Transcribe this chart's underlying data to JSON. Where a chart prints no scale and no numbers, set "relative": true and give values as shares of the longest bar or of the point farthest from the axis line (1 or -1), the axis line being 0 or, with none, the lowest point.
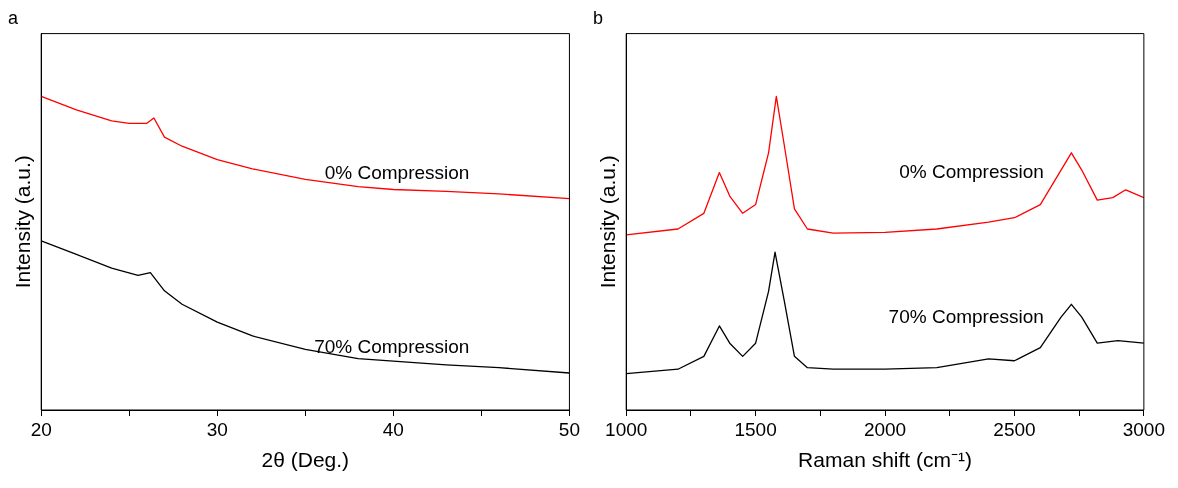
{
  "chart_data": [
    {
      "type": "line",
      "title": "a",
      "xlabel": "2θ (Deg.)",
      "ylabel": "Intensity (a.u.)",
      "relative": true,
      "xlim": [
        20,
        50
      ],
      "xticks": [
        20,
        {
          "value": 25,
          "label": null
        },
        30,
        {
          "value": 35,
          "label": null
        },
        40,
        {
          "value": 45,
          "label": null
        },
        50
      ],
      "grid": false,
      "legend": false,
      "marker": "none",
      "series": [
        {
          "name": "0% Compression",
          "color": "#ff0000",
          "x": [
            20,
            22,
            24,
            25,
            26,
            26.4,
            27,
            28,
            30,
            32,
            35,
            38,
            40,
            43,
            46,
            50
          ],
          "values": [
            1.0,
            0.957,
            0.922,
            0.914,
            0.914,
            0.931,
            0.87,
            0.841,
            0.798,
            0.769,
            0.735,
            0.712,
            0.703,
            0.697,
            0.689,
            0.674
          ]
        },
        {
          "name": "70% Compression",
          "color": "#000000",
          "x": [
            20,
            22,
            24,
            25.5,
            26.2,
            27,
            28,
            30,
            32,
            35,
            38,
            40,
            43,
            46,
            50
          ],
          "values": [
            0.539,
            0.496,
            0.452,
            0.429,
            0.438,
            0.38,
            0.337,
            0.28,
            0.236,
            0.193,
            0.164,
            0.156,
            0.144,
            0.135,
            0.118
          ]
        }
      ]
    },
    {
      "type": "line",
      "title": "b",
      "xlabel": "Raman shift (cm⁻¹)",
      "ylabel": "Intensity (a.u.)",
      "relative": true,
      "xlim": [
        1000,
        3000
      ],
      "xticks": [
        1000,
        {
          "value": 1250,
          "label": null
        },
        1500,
        {
          "value": 1750,
          "label": null
        },
        2000,
        {
          "value": 2250,
          "label": null
        },
        2500,
        {
          "value": 2750,
          "label": null
        },
        3000
      ],
      "grid": false,
      "legend": false,
      "marker": "none",
      "series": [
        {
          "name": "0% Compression",
          "color": "#ff0000",
          "x": [
            1000,
            1200,
            1300,
            1360,
            1400,
            1450,
            1500,
            1550,
            1580,
            1610,
            1650,
            1700,
            1800,
            2000,
            2200,
            2400,
            2500,
            2600,
            2680,
            2720,
            2760,
            2820,
            2880,
            2930,
            3000
          ],
          "values": [
            0.558,
            0.577,
            0.627,
            0.757,
            0.682,
            0.627,
            0.655,
            0.82,
            1.0,
            0.848,
            0.641,
            0.577,
            0.564,
            0.566,
            0.577,
            0.599,
            0.613,
            0.655,
            0.765,
            0.82,
            0.765,
            0.669,
            0.677,
            0.702,
            0.677
          ]
        },
        {
          "name": "70% Compression",
          "color": "#000000",
          "x": [
            1000,
            1200,
            1300,
            1360,
            1400,
            1450,
            1500,
            1550,
            1575,
            1610,
            1650,
            1700,
            1800,
            2000,
            2200,
            2400,
            2500,
            2600,
            2680,
            2720,
            2760,
            2820,
            2900,
            3000
          ],
          "values": [
            0.116,
            0.13,
            0.171,
            0.268,
            0.213,
            0.171,
            0.213,
            0.378,
            0.503,
            0.351,
            0.171,
            0.135,
            0.13,
            0.13,
            0.135,
            0.163,
            0.157,
            0.199,
            0.296,
            0.337,
            0.296,
            0.213,
            0.221,
            0.213
          ]
        }
      ]
    }
  ]
}
